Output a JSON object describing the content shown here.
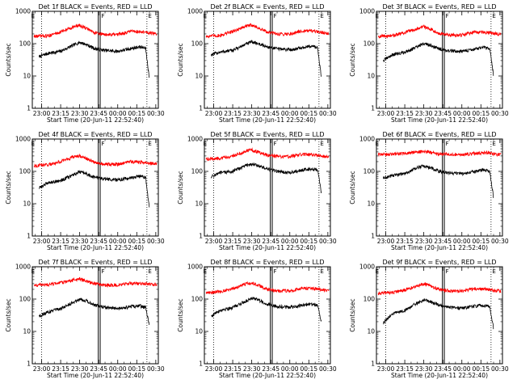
{
  "figure": {
    "xlabel": "Start Time (20-Jun-11 22:52:40)",
    "ylabel": "Counts/sec",
    "x_tick_labels": [
      "23:00",
      "23:15",
      "23:30",
      "23:45",
      "00:00",
      "00:15",
      "00:30"
    ],
    "y_tick_labels": [
      "1",
      "10",
      "100",
      "1000"
    ],
    "marker_left": "E",
    "marker_mid": "F",
    "marker_right": "E",
    "colors": {
      "events": "#000000",
      "lld": "#ff0000",
      "background": "#ffffff"
    }
  },
  "chart_data": [
    {
      "type": "line",
      "title": "Det 1f BLACK = Events, RED = LLD",
      "xlabel": "Start Time (20-Jun-11 22:52:40)",
      "ylabel": "Counts/sec",
      "y_scale": "log",
      "ylim": [
        1,
        1000
      ],
      "x_time_range": [
        "22:52:40",
        "00:32:00"
      ],
      "vertical_lines": {
        "dotted": [
          "23:00",
          "00:23"
        ],
        "solid_pair": [
          "23:44:40",
          "23:46:10"
        ]
      },
      "series": [
        {
          "name": "Events",
          "color": "#000000",
          "x": [
            "22:58",
            "23:05",
            "23:15",
            "23:25",
            "23:30",
            "23:35",
            "23:42",
            "23:50",
            "00:00",
            "00:10",
            "00:17",
            "00:22",
            "00:25"
          ],
          "y": [
            40,
            50,
            58,
            90,
            110,
            95,
            70,
            62,
            58,
            70,
            80,
            72,
            8
          ]
        },
        {
          "name": "LLD",
          "color": "#ff0000",
          "x": [
            "22:54",
            "23:05",
            "23:15",
            "23:25",
            "23:30",
            "23:35",
            "23:42",
            "23:50",
            "00:00",
            "00:10",
            "00:20",
            "00:31"
          ],
          "y": [
            170,
            175,
            230,
            330,
            370,
            300,
            220,
            190,
            190,
            240,
            230,
            200
          ]
        }
      ]
    },
    {
      "type": "line",
      "title": "Det 2f BLACK = Events, RED = LLD",
      "xlabel": "Start Time (20-Jun-11 22:52:40)",
      "ylabel": "Counts/sec",
      "y_scale": "log",
      "ylim": [
        1,
        1000
      ],
      "x_time_range": [
        "22:52:40",
        "00:32:00"
      ],
      "vertical_lines": {
        "dotted": [
          "23:00",
          "00:23"
        ],
        "solid_pair": [
          "23:44:40",
          "23:46:10"
        ]
      },
      "series": [
        {
          "name": "Events",
          "color": "#000000",
          "x": [
            "22:58",
            "23:05",
            "23:15",
            "23:25",
            "23:30",
            "23:35",
            "23:42",
            "23:50",
            "00:00",
            "00:10",
            "00:17",
            "00:22",
            "00:25"
          ],
          "y": [
            45,
            55,
            62,
            95,
            115,
            100,
            80,
            70,
            65,
            75,
            85,
            75,
            8
          ]
        },
        {
          "name": "LLD",
          "color": "#ff0000",
          "x": [
            "22:54",
            "23:05",
            "23:15",
            "23:25",
            "23:30",
            "23:35",
            "23:42",
            "23:50",
            "00:00",
            "00:10",
            "00:20",
            "00:31"
          ],
          "y": [
            170,
            180,
            240,
            340,
            380,
            310,
            230,
            200,
            200,
            250,
            240,
            210
          ]
        }
      ]
    },
    {
      "type": "line",
      "title": "Det 3f BLACK = Events, RED = LLD",
      "xlabel": "Start Time (20-Jun-11 22:52:40)",
      "ylabel": "Counts/sec",
      "y_scale": "log",
      "ylim": [
        1,
        1000
      ],
      "x_time_range": [
        "22:52:40",
        "00:32:00"
      ],
      "vertical_lines": {
        "dotted": [
          "23:00",
          "00:23"
        ],
        "solid_pair": [
          "23:44:40",
          "23:46:10"
        ]
      },
      "series": [
        {
          "name": "Events",
          "color": "#000000",
          "x": [
            "22:58",
            "23:05",
            "23:15",
            "23:25",
            "23:30",
            "23:35",
            "23:42",
            "23:50",
            "00:00",
            "00:10",
            "00:17",
            "00:22",
            "00:25"
          ],
          "y": [
            30,
            45,
            55,
            80,
            100,
            90,
            70,
            60,
            58,
            68,
            75,
            70,
            10
          ]
        },
        {
          "name": "LLD",
          "color": "#ff0000",
          "x": [
            "22:54",
            "23:05",
            "23:15",
            "23:25",
            "23:30",
            "23:35",
            "23:42",
            "23:50",
            "00:00",
            "00:10",
            "00:20",
            "00:31"
          ],
          "y": [
            170,
            175,
            220,
            300,
            340,
            290,
            210,
            185,
            185,
            230,
            220,
            195
          ]
        }
      ]
    },
    {
      "type": "line",
      "title": "Det 4f BLACK = Events, RED = LLD",
      "xlabel": "Start Time (20-Jun-11 22:52:40)",
      "ylabel": "Counts/sec",
      "y_scale": "log",
      "ylim": [
        1,
        1000
      ],
      "x_time_range": [
        "22:52:40",
        "00:32:00"
      ],
      "vertical_lines": {
        "dotted": [
          "23:00",
          "00:23"
        ],
        "solid_pair": [
          "23:44:40",
          "23:46:10"
        ]
      },
      "series": [
        {
          "name": "Events",
          "color": "#000000",
          "x": [
            "22:58",
            "23:05",
            "23:15",
            "23:25",
            "23:30",
            "23:35",
            "23:42",
            "23:50",
            "00:00",
            "00:10",
            "00:17",
            "00:22",
            "00:25"
          ],
          "y": [
            30,
            45,
            52,
            78,
            95,
            85,
            65,
            58,
            55,
            62,
            72,
            65,
            7
          ]
        },
        {
          "name": "LLD",
          "color": "#ff0000",
          "x": [
            "22:54",
            "23:05",
            "23:15",
            "23:25",
            "23:30",
            "23:35",
            "23:42",
            "23:50",
            "00:00",
            "00:10",
            "00:20",
            "00:31"
          ],
          "y": [
            150,
            160,
            200,
            280,
            300,
            250,
            190,
            170,
            165,
            200,
            190,
            170
          ]
        }
      ]
    },
    {
      "type": "line",
      "title": "Det 5f BLACK = Events, RED = LLD",
      "xlabel": "Start Time (20-Jun-11 22:52:40)",
      "ylabel": "Counts/sec",
      "y_scale": "log",
      "ylim": [
        1,
        1000
      ],
      "x_time_range": [
        "22:52:40",
        "00:32:00"
      ],
      "vertical_lines": {
        "dotted": [
          "23:00",
          "00:23"
        ],
        "solid_pair": [
          "23:44:40",
          "23:46:10"
        ]
      },
      "series": [
        {
          "name": "Events",
          "color": "#000000",
          "x": [
            "22:58",
            "23:05",
            "23:15",
            "23:25",
            "23:30",
            "23:35",
            "23:42",
            "23:50",
            "00:00",
            "00:10",
            "00:17",
            "00:22",
            "00:25"
          ],
          "y": [
            70,
            90,
            100,
            150,
            170,
            150,
            120,
            100,
            90,
            110,
            120,
            110,
            20
          ]
        },
        {
          "name": "LLD",
          "color": "#ff0000",
          "x": [
            "22:54",
            "23:05",
            "23:15",
            "23:25",
            "23:30",
            "23:35",
            "23:42",
            "23:50",
            "00:00",
            "00:10",
            "00:20",
            "00:31"
          ],
          "y": [
            240,
            250,
            300,
            420,
            460,
            400,
            320,
            290,
            290,
            340,
            320,
            290
          ]
        }
      ]
    },
    {
      "type": "line",
      "title": "Det 6f BLACK = Events, RED = LLD",
      "xlabel": "Start Time (20-Jun-11 22:52:40)",
      "ylabel": "Counts/sec",
      "y_scale": "log",
      "ylim": [
        1,
        1000
      ],
      "x_time_range": [
        "22:52:40",
        "00:32:00"
      ],
      "vertical_lines": {
        "dotted": [
          "23:00",
          "00:23"
        ],
        "solid_pair": [
          "23:44:40",
          "23:46:10"
        ]
      },
      "series": [
        {
          "name": "Events",
          "color": "#000000",
          "x": [
            "22:58",
            "23:05",
            "23:15",
            "23:25",
            "23:30",
            "23:35",
            "23:42",
            "23:50",
            "00:00",
            "00:10",
            "00:17",
            "00:22",
            "00:25"
          ],
          "y": [
            60,
            75,
            85,
            130,
            150,
            130,
            100,
            90,
            85,
            100,
            110,
            100,
            15
          ]
        },
        {
          "name": "LLD",
          "color": "#ff0000",
          "x": [
            "22:54",
            "23:05",
            "23:15",
            "23:25",
            "23:30",
            "23:35",
            "23:42",
            "23:50",
            "00:00",
            "00:10",
            "00:20",
            "00:31"
          ],
          "y": [
            330,
            340,
            360,
            400,
            420,
            390,
            350,
            330,
            330,
            360,
            380,
            320
          ]
        }
      ]
    },
    {
      "type": "line",
      "title": "Det 7f BLACK = Events, RED = LLD",
      "xlabel": "Start Time (20-Jun-11 22:52:40)",
      "ylabel": "Counts/sec",
      "y_scale": "log",
      "ylim": [
        1,
        1000
      ],
      "x_time_range": [
        "22:52:40",
        "00:32:00"
      ],
      "vertical_lines": {
        "dotted": [
          "23:00",
          "00:23"
        ],
        "solid_pair": [
          "23:44:40",
          "23:46:10"
        ]
      },
      "series": [
        {
          "name": "Events",
          "color": "#000000",
          "x": [
            "22:58",
            "23:05",
            "23:15",
            "23:25",
            "23:30",
            "23:35",
            "23:42",
            "23:50",
            "00:00",
            "00:10",
            "00:17",
            "00:22",
            "00:25"
          ],
          "y": [
            30,
            40,
            50,
            80,
            100,
            90,
            65,
            55,
            50,
            58,
            62,
            55,
            15
          ]
        },
        {
          "name": "LLD",
          "color": "#ff0000",
          "x": [
            "22:54",
            "23:05",
            "23:15",
            "23:25",
            "23:30",
            "23:35",
            "23:42",
            "23:50",
            "00:00",
            "00:10",
            "00:20",
            "00:31"
          ],
          "y": [
            270,
            280,
            320,
            390,
            420,
            360,
            300,
            270,
            270,
            310,
            300,
            280
          ]
        }
      ]
    },
    {
      "type": "line",
      "title": "Det 8f BLACK = Events, RED = LLD",
      "xlabel": "Start Time (20-Jun-11 22:52:40)",
      "ylabel": "Counts/sec",
      "y_scale": "log",
      "ylim": [
        1,
        1000
      ],
      "x_time_range": [
        "22:52:40",
        "00:32:00"
      ],
      "vertical_lines": {
        "dotted": [
          "23:00",
          "00:23"
        ],
        "solid_pair": [
          "23:44:40",
          "23:46:10"
        ]
      },
      "series": [
        {
          "name": "Events",
          "color": "#000000",
          "x": [
            "22:58",
            "23:05",
            "23:15",
            "23:25",
            "23:30",
            "23:35",
            "23:42",
            "23:50",
            "00:00",
            "00:10",
            "00:17",
            "00:22",
            "00:25"
          ],
          "y": [
            30,
            45,
            55,
            85,
            110,
            95,
            70,
            60,
            55,
            65,
            70,
            62,
            18
          ]
        },
        {
          "name": "LLD",
          "color": "#ff0000",
          "x": [
            "22:54",
            "23:05",
            "23:15",
            "23:25",
            "23:30",
            "23:35",
            "23:42",
            "23:50",
            "00:00",
            "00:10",
            "00:20",
            "00:31"
          ],
          "y": [
            160,
            170,
            210,
            290,
            320,
            270,
            200,
            180,
            180,
            220,
            210,
            185
          ]
        }
      ]
    },
    {
      "type": "line",
      "title": "Det 9f BLACK = Events, RED = LLD",
      "xlabel": "Start Time (20-Jun-11 22:52:40)",
      "ylabel": "Counts/sec",
      "y_scale": "log",
      "ylim": [
        1,
        1000
      ],
      "x_time_range": [
        "22:52:40",
        "00:32:00"
      ],
      "vertical_lines": {
        "dotted": [
          "23:00",
          "00:23"
        ],
        "solid_pair": [
          "23:44:40",
          "23:46:10"
        ]
      },
      "series": [
        {
          "name": "Events",
          "color": "#000000",
          "x": [
            "22:58",
            "23:05",
            "23:15",
            "23:25",
            "23:30",
            "23:35",
            "23:42",
            "23:50",
            "00:00",
            "00:10",
            "00:17",
            "00:22",
            "00:25"
          ],
          "y": [
            18,
            35,
            45,
            75,
            95,
            85,
            65,
            55,
            52,
            60,
            65,
            58,
            12
          ]
        },
        {
          "name": "LLD",
          "color": "#ff0000",
          "x": [
            "22:54",
            "23:05",
            "23:15",
            "23:25",
            "23:30",
            "23:35",
            "23:42",
            "23:50",
            "00:00",
            "00:10",
            "00:20",
            "00:31"
          ],
          "y": [
            150,
            160,
            190,
            260,
            300,
            260,
            200,
            180,
            175,
            210,
            200,
            175
          ]
        }
      ]
    }
  ]
}
